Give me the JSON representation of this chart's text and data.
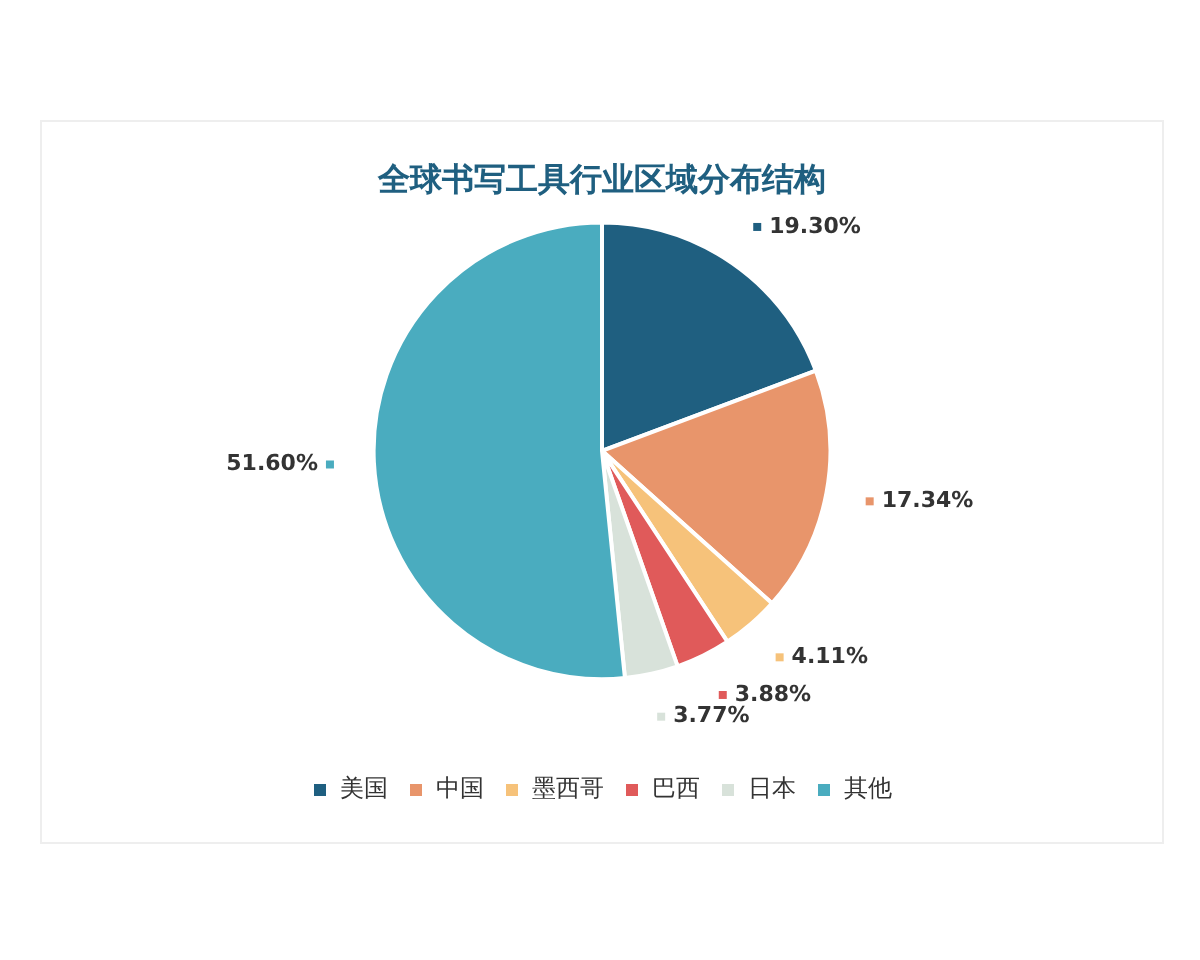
{
  "chart_data": {
    "type": "pie",
    "title": "全球书写工具行业区域分布结构",
    "categories": [
      "美国",
      "中国",
      "墨西哥",
      "巴西",
      "日本",
      "其他"
    ],
    "values": [
      19.3,
      17.34,
      4.11,
      3.88,
      3.77,
      51.6
    ],
    "colors": [
      "#1f5f80",
      "#e8956b",
      "#f6c27a",
      "#e05a5a",
      "#d8e2da",
      "#4aacbf"
    ],
    "value_labels": [
      "19.30%",
      "17.34%",
      "4.11%",
      "3.88%",
      "3.77%",
      "51.60%"
    ],
    "legend": "bottom"
  }
}
